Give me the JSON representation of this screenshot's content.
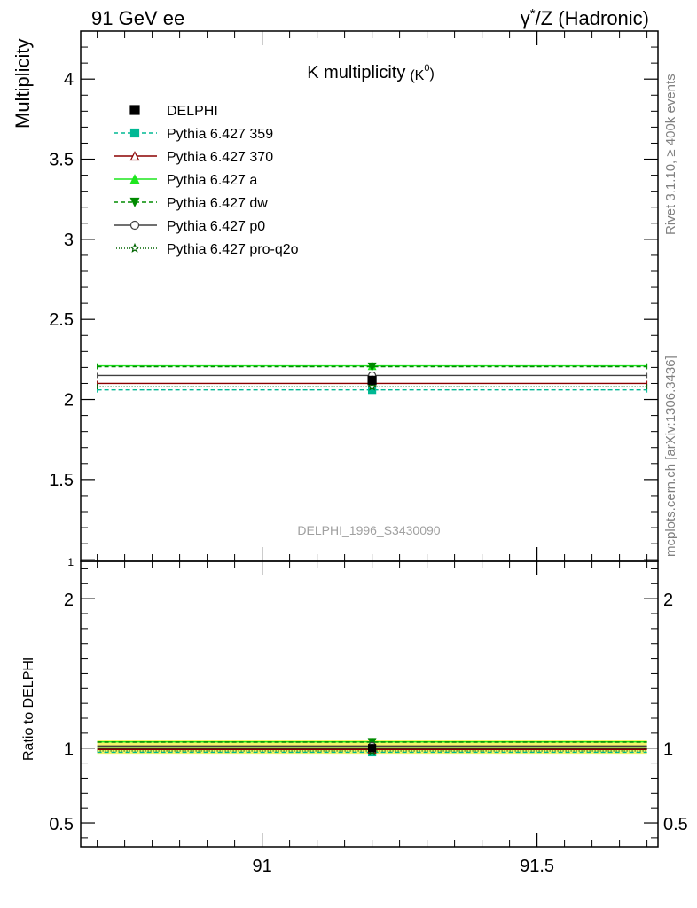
{
  "header": {
    "left_label": "91 GeV ee",
    "right_label_prefix": "γ",
    "right_label_sup": "*",
    "right_label_suffix": "/Z (Hadronic)"
  },
  "side_labels": {
    "rivet": "Rivet 3.1.10, ≥ 400k events",
    "mcplots": "mcplots.cern.ch [arXiv:1306.3436]"
  },
  "chart_data": [
    {
      "type": "line",
      "title": "K multiplicity",
      "title_sub": "(K",
      "title_sup": "0",
      "title_close": ")",
      "ylabel": "Multiplicity",
      "xlabel": "",
      "watermark": "DELPHI_1996_S3430090",
      "xlim": [
        90.67,
        91.72
      ],
      "ylim": [
        0.99,
        4.3
      ],
      "yticks": [
        1,
        1.5,
        2,
        2.5,
        3,
        3.5,
        4
      ],
      "ytick_labels": [
        "1",
        "1.5",
        "2",
        "2.5",
        "3",
        "3.5",
        "4"
      ],
      "bin": {
        "x_center": 91.2,
        "x_low": 90.7,
        "x_high": 91.7
      },
      "legend_position": "top-left",
      "data": {
        "name": "DELPHI",
        "x": 91.2,
        "y": 2.12,
        "yerr": 0.03,
        "color": "#000000",
        "marker": "square-filled"
      },
      "series": [
        {
          "name": "Pythia 6.427 359",
          "y": 2.06,
          "color": "#00b894",
          "dash": "5,3",
          "marker": "square-filled"
        },
        {
          "name": "Pythia 6.427 370",
          "y": 2.1,
          "color": "#8b0000",
          "dash": "",
          "marker": "triangle-open"
        },
        {
          "name": "Pythia 6.427 a",
          "y": 2.21,
          "color": "#1ee61e",
          "dash": "",
          "marker": "triangle-filled"
        },
        {
          "name": "Pythia 6.427 dw",
          "y": 2.205,
          "color": "#008b00",
          "dash": "5,3",
          "marker": "triangle-down-filled"
        },
        {
          "name": "Pythia 6.427 p0",
          "y": 2.15,
          "color": "#404040",
          "dash": "",
          "marker": "circle-open"
        },
        {
          "name": "Pythia 6.427 pro-q2o",
          "y": 2.08,
          "color": "#006400",
          "dash": "1,2",
          "marker": "star-open"
        }
      ]
    },
    {
      "type": "line",
      "ylabel": "Ratio to DELPHI",
      "xlim": [
        90.67,
        91.72
      ],
      "ylim": [
        0.34,
        2.25
      ],
      "yticks": [
        0.5,
        1,
        2
      ],
      "ytick_labels": [
        "0.5",
        "1",
        "2"
      ],
      "xticks": [
        91,
        91.5
      ],
      "xtick_labels": [
        "91",
        "91.5"
      ],
      "band": {
        "low": 0.962,
        "high": 1.052,
        "inner_low": 0.986,
        "inner_high": 1.014
      },
      "ratios": [
        {
          "name": "Pythia 6.427 359",
          "y": 0.972
        },
        {
          "name": "Pythia 6.427 370",
          "y": 0.991
        },
        {
          "name": "Pythia 6.427 a",
          "y": 1.042
        },
        {
          "name": "Pythia 6.427 dw",
          "y": 1.04
        },
        {
          "name": "Pythia 6.427 p0",
          "y": 1.014
        },
        {
          "name": "Pythia 6.427 pro-q2o",
          "y": 0.981
        }
      ]
    }
  ]
}
